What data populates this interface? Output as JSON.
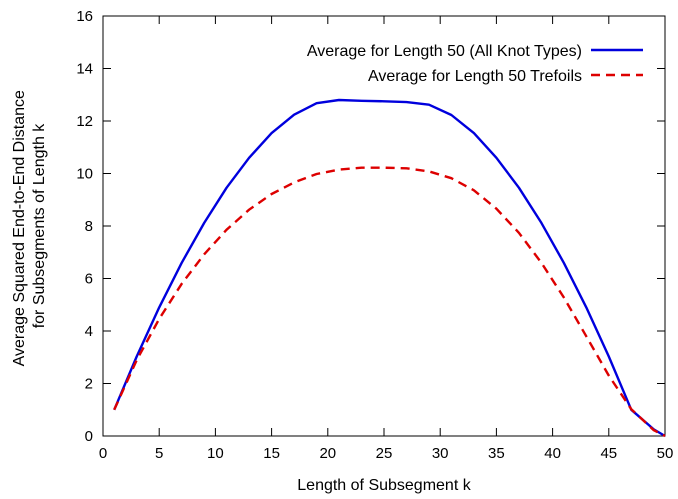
{
  "chart_data": {
    "type": "line",
    "xlabel": "Length of Subsegment k",
    "ylabel_lines": [
      "Average Squared End-to-End Distance",
      "for Subsegments of Length k"
    ],
    "xlim": [
      0,
      50
    ],
    "ylim": [
      0,
      16
    ],
    "xticks": [
      0,
      5,
      10,
      15,
      20,
      25,
      30,
      35,
      40,
      45,
      50
    ],
    "yticks": [
      0,
      2,
      4,
      6,
      8,
      10,
      12,
      14,
      16
    ],
    "grid": false,
    "legend_position": "top-right",
    "series": [
      {
        "name": "Average for Length 50 (All Knot Types)",
        "color": "#0000dd",
        "style": "solid",
        "x": [
          1,
          3,
          5,
          7,
          9,
          11,
          13,
          15,
          17,
          19,
          21,
          23,
          25,
          27,
          29,
          31,
          33,
          35,
          37,
          39,
          41,
          43,
          45,
          47,
          49,
          50
        ],
        "y": [
          1.0,
          3.03,
          4.9,
          6.6,
          8.12,
          9.46,
          10.6,
          11.54,
          12.24,
          12.68,
          12.8,
          12.77,
          12.75,
          12.72,
          12.62,
          12.23,
          11.54,
          10.6,
          9.46,
          8.12,
          6.6,
          4.9,
          3.03,
          1.0,
          0.25,
          0.0
        ]
      },
      {
        "name": "Average for Length 50 Trefoils",
        "color": "#dd0000",
        "style": "dashed",
        "x": [
          1,
          3,
          5,
          7,
          9,
          11,
          13,
          15,
          17,
          19,
          21,
          23,
          25,
          27,
          29,
          31,
          33,
          35,
          37,
          39,
          41,
          43,
          45,
          47,
          49,
          50
        ],
        "y": [
          1.0,
          2.89,
          4.46,
          5.8,
          6.92,
          7.86,
          8.62,
          9.22,
          9.66,
          9.98,
          10.15,
          10.22,
          10.22,
          10.2,
          10.08,
          9.82,
          9.36,
          8.66,
          7.74,
          6.6,
          5.28,
          3.8,
          2.3,
          1.02,
          0.22,
          0.0
        ]
      }
    ]
  }
}
